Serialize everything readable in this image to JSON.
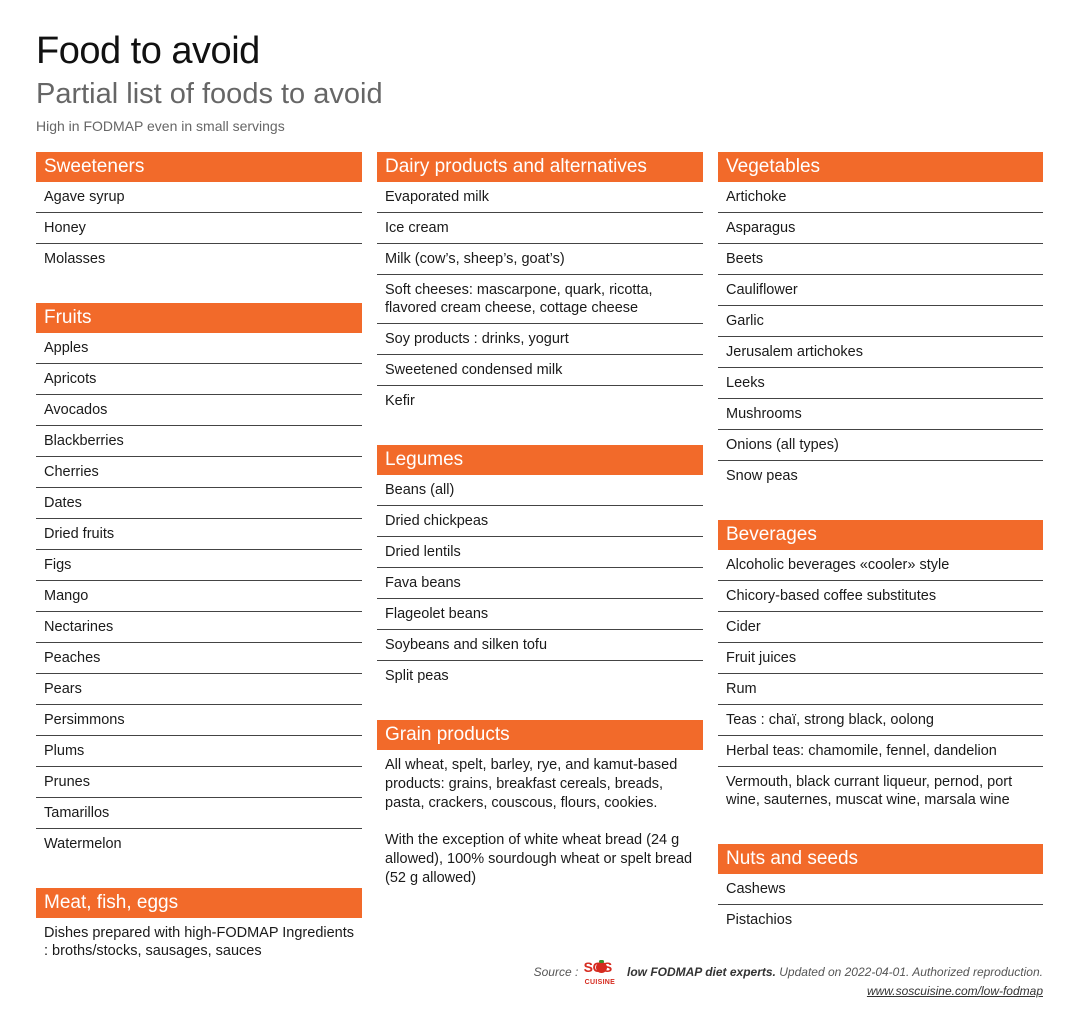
{
  "header": {
    "title": "Food to avoid",
    "subtitle": "Partial list of foods to avoid",
    "note": "High in FODMAP even in small servings"
  },
  "colors": {
    "accent": "#f26a2a",
    "text": "#1a1a1a",
    "muted": "#666666"
  },
  "columns": [
    {
      "sections": [
        {
          "title": "Sweeteners",
          "items": [
            "Agave syrup",
            "Honey",
            "Molasses"
          ]
        },
        {
          "title": "Fruits",
          "items": [
            "Apples",
            "Apricots",
            "Avocados",
            "Blackberries",
            "Cherries",
            "Dates",
            "Dried fruits",
            "Figs",
            "Mango",
            "Nectarines",
            "Peaches",
            "Pears",
            "Persimmons",
            "Plums",
            "Prunes",
            "Tamarillos",
            "Watermelon"
          ]
        },
        {
          "title": "Meat, fish, eggs",
          "items": [
            "Dishes prepared with high-FODMAP Ingredients : broths/stocks, sausages, sauces"
          ]
        }
      ]
    },
    {
      "sections": [
        {
          "title": "Dairy products and alternatives",
          "items": [
            "Evaporated milk",
            "Ice cream",
            "Milk (cow’s, sheep’s, goat’s)",
            "Soft cheeses: mascarpone, quark, ricotta, flavored cream cheese, cottage cheese",
            "Soy products : drinks, yogurt",
            "Sweetened condensed milk",
            "Kefir"
          ]
        },
        {
          "title": "Legumes",
          "items": [
            "Beans (all)",
            "Dried chickpeas",
            "Dried lentils",
            "Fava beans",
            "Flageolet beans",
            "Soybeans and silken tofu",
            "Split peas"
          ]
        },
        {
          "title": "Grain products",
          "paragraphs": [
            "All wheat, spelt, barley, rye, and kamut-based products: grains, breakfast cereals, breads, pasta, crackers, couscous, flours, cookies.",
            "With the exception of white wheat bread (24 g allowed), 100% sourdough wheat or spelt bread (52 g allowed)"
          ]
        }
      ]
    },
    {
      "sections": [
        {
          "title": "Vegetables",
          "items": [
            "Artichoke",
            "Asparagus",
            "Beets",
            "Cauliflower",
            "Garlic",
            "Jerusalem artichokes",
            "Leeks",
            "Mushrooms",
            "Onions (all types)",
            "Snow peas"
          ]
        },
        {
          "title": "Beverages",
          "items": [
            "Alcoholic beverages «cooler» style",
            "Chicory-based coffee substitutes",
            "Cider",
            "Fruit juices",
            "Rum",
            "Teas : chaï, strong black, oolong",
            "Herbal teas: chamomile, fennel, dandelion",
            "Vermouth, black currant liqueur, pernod, port wine, sauternes, muscat wine, marsala wine"
          ]
        },
        {
          "title": "Nuts and seeds",
          "items": [
            "Cashews",
            "Pistachios"
          ]
        }
      ]
    }
  ],
  "footer": {
    "source_label": "Source :",
    "logo_text": "SOS",
    "logo_subtext": "CUISINE",
    "credit": "low FODMAP diet experts.",
    "updated": "Updated on 2022-04-01. Authorized reproduction.",
    "url": "www.soscuisine.com/low-fodmap"
  }
}
